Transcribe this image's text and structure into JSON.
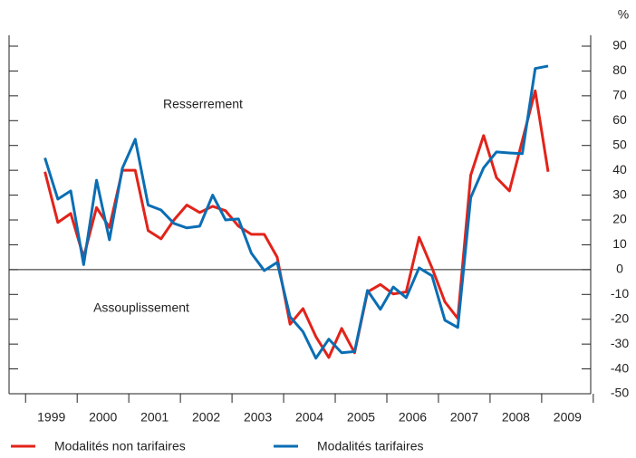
{
  "chart_data": {
    "type": "line",
    "y_label": "%",
    "annotations": [
      "Resserrement",
      "Assouplissement"
    ],
    "x": [
      1999.375,
      1999.625,
      1999.875,
      2000.125,
      2000.375,
      2000.625,
      2000.875,
      2001.125,
      2001.375,
      2001.625,
      2001.875,
      2002.125,
      2002.375,
      2002.625,
      2002.875,
      2003.125,
      2003.375,
      2003.625,
      2003.875,
      2004.125,
      2004.375,
      2004.625,
      2004.875,
      2005.125,
      2005.375,
      2005.625,
      2005.875,
      2006.125,
      2006.375,
      2006.625,
      2006.875,
      2007.125,
      2007.375,
      2007.625,
      2007.875,
      2008.125,
      2008.375,
      2008.625,
      2008.875,
      2009.125
    ],
    "series": [
      {
        "name": "Modalités non tarifaires",
        "color": "#e2231a",
        "values": [
          39.4,
          19,
          22.6,
          5,
          25,
          17,
          40,
          40,
          15.7,
          12.4,
          20,
          26,
          23,
          25.5,
          23.7,
          17.5,
          14.2,
          14.2,
          5,
          -22,
          -15.7,
          -27,
          -35.4,
          -23.7,
          -33.5,
          -9,
          -6,
          -9.8,
          -9,
          13,
          0.7,
          -13,
          -19.7,
          38,
          54,
          37,
          31.7,
          52,
          72,
          39.4
        ]
      },
      {
        "name": "Modalités tarifaires",
        "color": "#0a6eb4",
        "values": [
          45,
          28.4,
          31.7,
          2,
          36,
          12,
          40.8,
          52.5,
          26,
          24,
          18.6,
          16.8,
          17.5,
          30,
          20,
          20.4,
          6.6,
          -0.4,
          2.9,
          -19,
          -25,
          -35.7,
          -28,
          -33.5,
          -33,
          -8.4,
          -16,
          -7,
          -11.3,
          0.7,
          -2.5,
          -20.4,
          -23.3,
          29,
          41,
          47.4,
          47,
          46.7,
          81,
          82
        ]
      }
    ],
    "xlim": [
      1998.68,
      2009.95
    ],
    "xticks": [
      {
        "value": 1999.5,
        "label": "1999"
      },
      {
        "value": 2000.5,
        "label": "2000"
      },
      {
        "value": 2001.5,
        "label": "2001"
      },
      {
        "value": 2002.5,
        "label": "2002"
      },
      {
        "value": 2003.5,
        "label": "2003"
      },
      {
        "value": 2004.5,
        "label": "2004"
      },
      {
        "value": 2005.5,
        "label": "2005"
      },
      {
        "value": 2006.5,
        "label": "2006"
      },
      {
        "value": 2007.5,
        "label": "2007"
      },
      {
        "value": 2008.5,
        "label": "2008"
      },
      {
        "value": 2009.5,
        "label": "2009"
      }
    ],
    "ylim": [
      -50,
      90
    ],
    "yticks": [
      -50,
      -40,
      -30,
      -20,
      -10,
      0,
      10,
      20,
      30,
      40,
      50,
      60,
      70,
      80,
      90
    ],
    "grid": false,
    "legend": "bottom"
  }
}
